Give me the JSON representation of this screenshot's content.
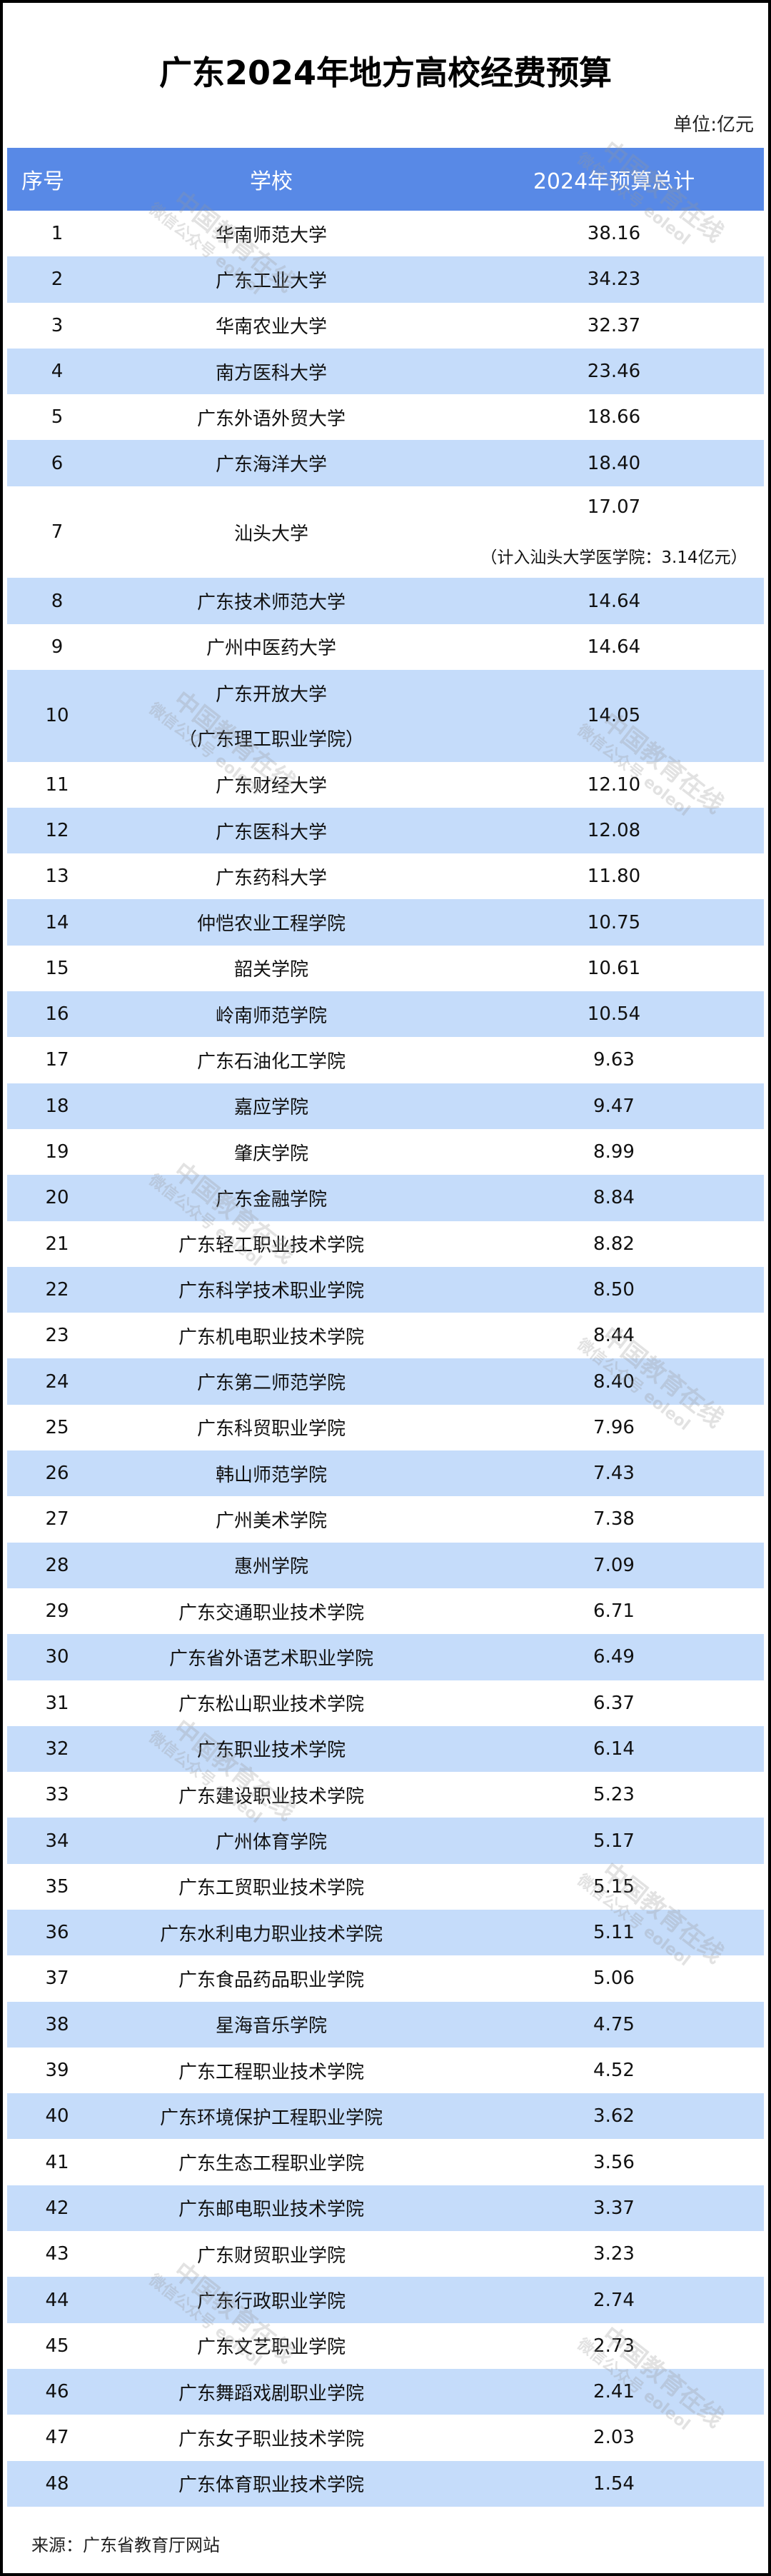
{
  "title": "广东2024年地方高校经费预算",
  "unit": "单位:亿元",
  "colors": {
    "header_bg": "#5889e6",
    "alt_row_bg": "#c5dcfa"
  },
  "table": {
    "headers": [
      "序号",
      "学校",
      "2024年预算总计"
    ],
    "rows": [
      {
        "no": "1",
        "school": "华南师范大学",
        "budget": "38.16"
      },
      {
        "no": "2",
        "school": "广东工业大学",
        "budget": "34.23"
      },
      {
        "no": "3",
        "school": "华南农业大学",
        "budget": "32.37"
      },
      {
        "no": "4",
        "school": "南方医科大学",
        "budget": "23.46"
      },
      {
        "no": "5",
        "school": "广东外语外贸大学",
        "budget": "18.66"
      },
      {
        "no": "6",
        "school": "广东海洋大学",
        "budget": "18.40"
      },
      {
        "no": "7",
        "school": "汕头大学",
        "budget": "17.07",
        "note": "（计入汕头大学医学院：3.14亿元）"
      },
      {
        "no": "8",
        "school": "广东技术师范大学",
        "budget": "14.64"
      },
      {
        "no": "9",
        "school": "广州中医药大学",
        "budget": "14.64"
      },
      {
        "no": "10",
        "school": "广东开放大学",
        "school_sub": "（广东理工职业学院）",
        "budget": "14.05"
      },
      {
        "no": "11",
        "school": "广东财经大学",
        "budget": "12.10"
      },
      {
        "no": "12",
        "school": "广东医科大学",
        "budget": "12.08"
      },
      {
        "no": "13",
        "school": "广东药科大学",
        "budget": "11.80"
      },
      {
        "no": "14",
        "school": "仲恺农业工程学院",
        "budget": "10.75"
      },
      {
        "no": "15",
        "school": "韶关学院",
        "budget": "10.61"
      },
      {
        "no": "16",
        "school": "岭南师范学院",
        "budget": "10.54"
      },
      {
        "no": "17",
        "school": "广东石油化工学院",
        "budget": "9.63"
      },
      {
        "no": "18",
        "school": "嘉应学院",
        "budget": "9.47"
      },
      {
        "no": "19",
        "school": "肇庆学院",
        "budget": "8.99"
      },
      {
        "no": "20",
        "school": "广东金融学院",
        "budget": "8.84"
      },
      {
        "no": "21",
        "school": "广东轻工职业技术学院",
        "budget": "8.82"
      },
      {
        "no": "22",
        "school": "广东科学技术职业学院",
        "budget": "8.50"
      },
      {
        "no": "23",
        "school": "广东机电职业技术学院",
        "budget": "8.44"
      },
      {
        "no": "24",
        "school": "广东第二师范学院",
        "budget": "8.40"
      },
      {
        "no": "25",
        "school": "广东科贸职业学院",
        "budget": "7.96"
      },
      {
        "no": "26",
        "school": "韩山师范学院",
        "budget": "7.43"
      },
      {
        "no": "27",
        "school": "广州美术学院",
        "budget": "7.38"
      },
      {
        "no": "28",
        "school": "惠州学院",
        "budget": "7.09"
      },
      {
        "no": "29",
        "school": "广东交通职业技术学院",
        "budget": "6.71"
      },
      {
        "no": "30",
        "school": "广东省外语艺术职业学院",
        "budget": "6.49"
      },
      {
        "no": "31",
        "school": "广东松山职业技术学院",
        "budget": "6.37"
      },
      {
        "no": "32",
        "school": "广东职业技术学院",
        "budget": "6.14"
      },
      {
        "no": "33",
        "school": "广东建设职业技术学院",
        "budget": "5.23"
      },
      {
        "no": "34",
        "school": "广州体育学院",
        "budget": "5.17"
      },
      {
        "no": "35",
        "school": "广东工贸职业技术学院",
        "budget": "5.15"
      },
      {
        "no": "36",
        "school": "广东水利电力职业技术学院",
        "budget": "5.11"
      },
      {
        "no": "37",
        "school": "广东食品药品职业学院",
        "budget": "5.06"
      },
      {
        "no": "38",
        "school": "星海音乐学院",
        "budget": "4.75"
      },
      {
        "no": "39",
        "school": "广东工程职业技术学院",
        "budget": "4.52"
      },
      {
        "no": "40",
        "school": "广东环境保护工程职业学院",
        "budget": "3.62"
      },
      {
        "no": "41",
        "school": "广东生态工程职业学院",
        "budget": "3.56"
      },
      {
        "no": "42",
        "school": "广东邮电职业技术学院",
        "budget": "3.37"
      },
      {
        "no": "43",
        "school": "广东财贸职业学院",
        "budget": "3.23"
      },
      {
        "no": "44",
        "school": "广东行政职业学院",
        "budget": "2.74"
      },
      {
        "no": "45",
        "school": "广东文艺职业学院",
        "budget": "2.73"
      },
      {
        "no": "46",
        "school": "广东舞蹈戏剧职业学院",
        "budget": "2.41"
      },
      {
        "no": "47",
        "school": "广东女子职业技术学院",
        "budget": "2.03"
      },
      {
        "no": "48",
        "school": "广东体育职业技术学院",
        "budget": "1.54"
      }
    ]
  },
  "source": "来源：广东省教育厅网站",
  "watermark": {
    "line1": "中国教育在线",
    "line2": "微信公众号 eoleol"
  }
}
